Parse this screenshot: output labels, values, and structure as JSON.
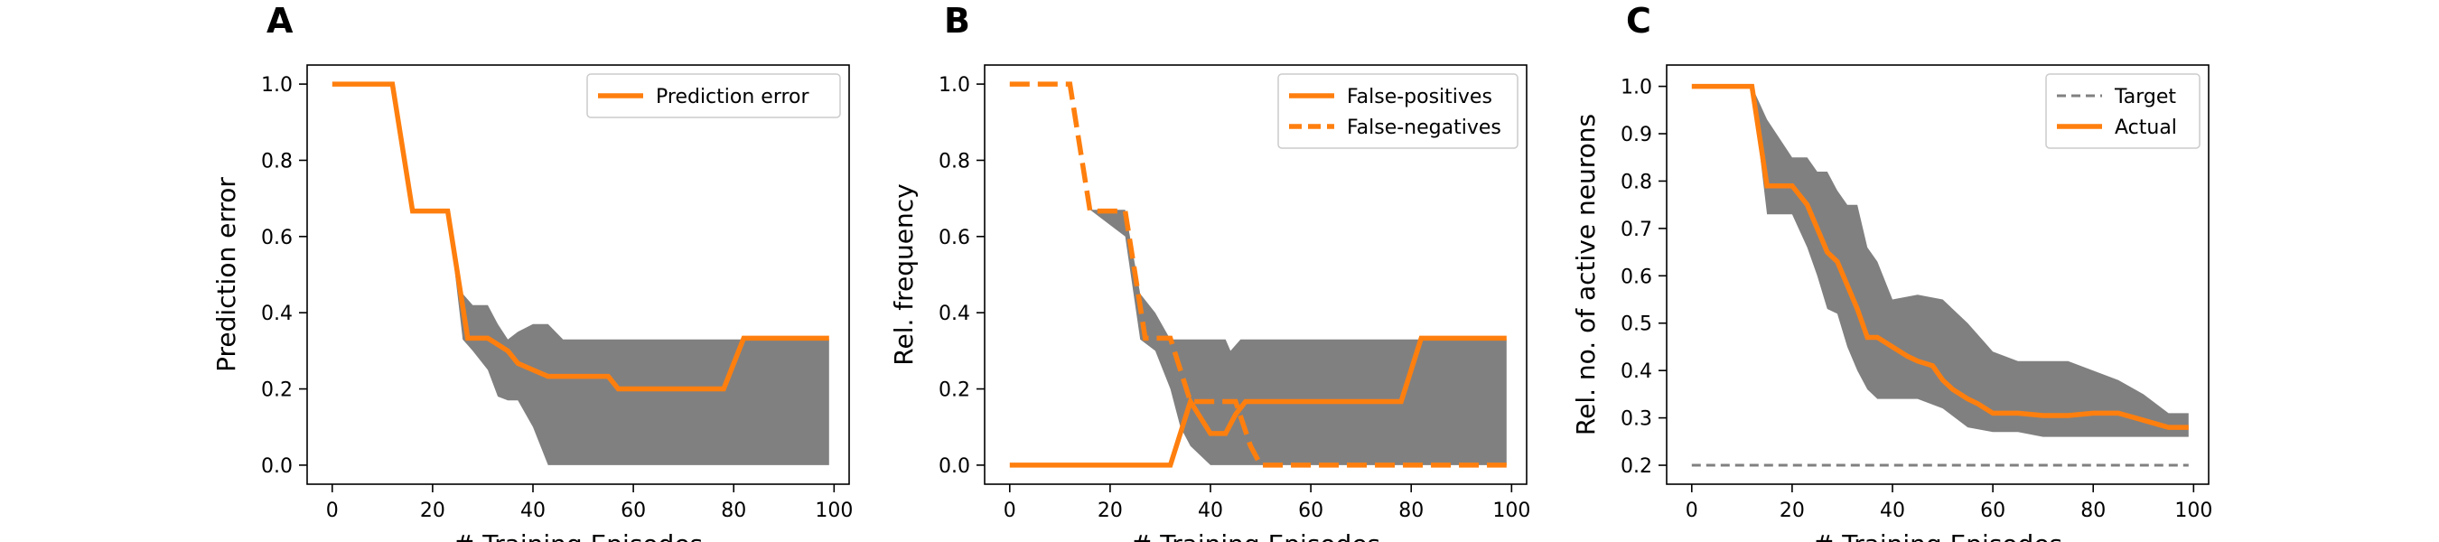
{
  "colors": {
    "accent": "#ff7f0e",
    "band": "#808080",
    "target": "#808080"
  },
  "chart_data": [
    {
      "type": "line",
      "panel_label": "A",
      "xlabel": "# Training Episodes",
      "ylabel": "Prediction error",
      "xlim": [
        -5,
        103
      ],
      "ylim": [
        -0.05,
        1.05
      ],
      "xticks": [
        0,
        20,
        40,
        60,
        80,
        100
      ],
      "xtick_labels": [
        "0",
        "20",
        "40",
        "60",
        "80",
        "100"
      ],
      "yticks": [
        0,
        0.2,
        0.4,
        0.6,
        0.8,
        1.0
      ],
      "ytick_labels": [
        "0.0",
        "0.2",
        "0.4",
        "0.6",
        "0.8",
        "1.0"
      ],
      "grid": false,
      "legend_position": "top-right",
      "band": {
        "x": [
          0,
          12,
          16,
          23,
          26,
          28,
          31,
          33,
          35,
          37,
          40,
          43,
          46,
          60,
          80,
          99
        ],
        "upper": [
          1.0,
          1.0,
          0.67,
          0.67,
          0.45,
          0.42,
          0.42,
          0.37,
          0.33,
          0.35,
          0.37,
          0.37,
          0.33,
          0.33,
          0.33,
          0.33
        ],
        "lower": [
          1.0,
          1.0,
          0.67,
          0.67,
          0.33,
          0.3,
          0.25,
          0.18,
          0.17,
          0.17,
          0.1,
          0.0,
          0.0,
          0.0,
          0.0,
          0.0
        ]
      },
      "series": [
        {
          "name": "Prediction error",
          "style": "solid",
          "x": [
            0,
            12,
            16,
            23,
            27,
            31,
            35,
            37,
            40,
            43,
            55,
            57,
            78,
            82,
            99
          ],
          "y": [
            1.0,
            1.0,
            0.667,
            0.667,
            0.333,
            0.333,
            0.3,
            0.267,
            0.25,
            0.233,
            0.233,
            0.2,
            0.2,
            0.333,
            0.333
          ]
        }
      ]
    },
    {
      "type": "line",
      "panel_label": "B",
      "xlabel": "# Training Episodes",
      "ylabel": "Rel. frequency",
      "xlim": [
        -5,
        103
      ],
      "ylim": [
        -0.05,
        1.05
      ],
      "xticks": [
        0,
        20,
        40,
        60,
        80,
        100
      ],
      "xtick_labels": [
        "0",
        "20",
        "40",
        "60",
        "80",
        "100"
      ],
      "yticks": [
        0,
        0.2,
        0.4,
        0.6,
        0.8,
        1.0
      ],
      "ytick_labels": [
        "0.0",
        "0.2",
        "0.4",
        "0.6",
        "0.8",
        "1.0"
      ],
      "grid": false,
      "legend_position": "top-right",
      "band": {
        "x": [
          0,
          12,
          16,
          23,
          26,
          29,
          32,
          34,
          36,
          40,
          43,
          44,
          46,
          60,
          80,
          99
        ],
        "upper": [
          1.0,
          1.0,
          0.67,
          0.67,
          0.45,
          0.4,
          0.33,
          0.33,
          0.33,
          0.33,
          0.33,
          0.3,
          0.33,
          0.33,
          0.33,
          0.33
        ],
        "lower": [
          1.0,
          1.0,
          0.67,
          0.6,
          0.33,
          0.3,
          0.2,
          0.1,
          0.05,
          0.0,
          0.0,
          0.0,
          0.0,
          0.0,
          0.0,
          0.0
        ]
      },
      "series": [
        {
          "name": "False-positives",
          "style": "solid",
          "x": [
            0,
            32,
            36,
            40,
            43,
            45,
            47,
            78,
            82,
            99
          ],
          "y": [
            0.0,
            0.0,
            0.167,
            0.083,
            0.083,
            0.133,
            0.167,
            0.167,
            0.333,
            0.333
          ]
        },
        {
          "name": "False-negatives",
          "style": "dashed",
          "x": [
            0,
            12,
            16,
            23,
            27,
            32,
            36,
            45,
            48,
            50,
            99
          ],
          "y": [
            1.0,
            1.0,
            0.667,
            0.667,
            0.333,
            0.333,
            0.167,
            0.167,
            0.05,
            0.0,
            0.0
          ]
        }
      ]
    },
    {
      "type": "line",
      "panel_label": "C",
      "xlabel": "# Training Episodes",
      "ylabel": "Rel. no. of active neurons",
      "xlim": [
        -5,
        103
      ],
      "ylim": [
        0.16,
        1.045
      ],
      "xticks": [
        0,
        20,
        40,
        60,
        80,
        100
      ],
      "xtick_labels": [
        "0",
        "20",
        "40",
        "60",
        "80",
        "100"
      ],
      "yticks": [
        0.2,
        0.3,
        0.4,
        0.5,
        0.6,
        0.7,
        0.8,
        0.9,
        1.0
      ],
      "ytick_labels": [
        "0.2",
        "0.3",
        "0.4",
        "0.5",
        "0.6",
        "0.7",
        "0.8",
        "0.9",
        "1.0"
      ],
      "grid": false,
      "legend_position": "top-right",
      "band": {
        "x": [
          0,
          12,
          15,
          20,
          23,
          25,
          27,
          29,
          31,
          33,
          35,
          37,
          40,
          45,
          50,
          55,
          60,
          65,
          70,
          75,
          80,
          85,
          90,
          95,
          99
        ],
        "upper": [
          1.0,
          1.0,
          0.93,
          0.85,
          0.85,
          0.82,
          0.82,
          0.78,
          0.75,
          0.75,
          0.66,
          0.63,
          0.55,
          0.56,
          0.55,
          0.5,
          0.44,
          0.42,
          0.42,
          0.42,
          0.4,
          0.38,
          0.35,
          0.31,
          0.31
        ],
        "lower": [
          1.0,
          1.0,
          0.73,
          0.73,
          0.66,
          0.6,
          0.53,
          0.52,
          0.45,
          0.4,
          0.36,
          0.34,
          0.34,
          0.34,
          0.32,
          0.28,
          0.27,
          0.27,
          0.26,
          0.26,
          0.26,
          0.26,
          0.26,
          0.26,
          0.26
        ]
      },
      "series": [
        {
          "name": "Target",
          "style": "dashed-thin",
          "x": [
            0,
            99
          ],
          "y": [
            0.2,
            0.2
          ]
        },
        {
          "name": "Actual",
          "style": "solid",
          "x": [
            0,
            12,
            15,
            20,
            23,
            25,
            27,
            29,
            31,
            33,
            35,
            37,
            40,
            43,
            45,
            48,
            50,
            52,
            55,
            57,
            60,
            65,
            70,
            75,
            80,
            85,
            90,
            95,
            99
          ],
          "y": [
            1.0,
            1.0,
            0.79,
            0.79,
            0.75,
            0.7,
            0.65,
            0.63,
            0.58,
            0.53,
            0.47,
            0.47,
            0.45,
            0.43,
            0.42,
            0.41,
            0.38,
            0.36,
            0.34,
            0.33,
            0.31,
            0.31,
            0.305,
            0.305,
            0.31,
            0.31,
            0.295,
            0.28,
            0.28
          ]
        }
      ]
    }
  ]
}
